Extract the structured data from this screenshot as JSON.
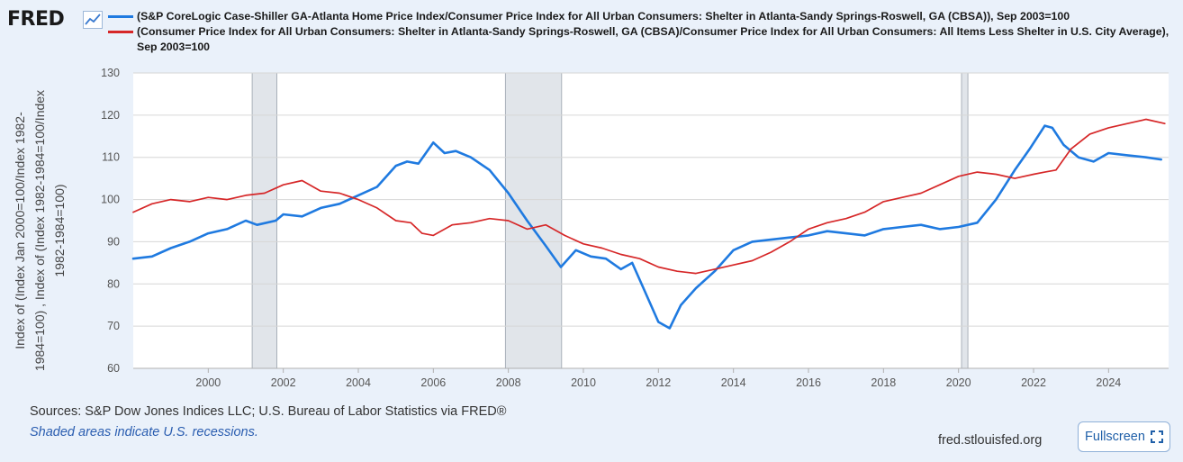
{
  "header": {
    "logo_text": "FRED",
    "logo_icon": "trend-line-icon"
  },
  "chart_data": {
    "type": "line",
    "title": "",
    "ylabel": "Index of (Index Jan 2000=100/Index 1982-1984=100) , Index of (Index 1982-1984=100/Index 1982-1984=100)",
    "xlabel": "",
    "ylim": [
      60,
      130
    ],
    "xlim": [
      1998.0,
      2025.6
    ],
    "yticks": [
      60,
      70,
      80,
      90,
      100,
      110,
      120,
      130
    ],
    "xticks": [
      2000,
      2002,
      2004,
      2006,
      2008,
      2010,
      2012,
      2014,
      2016,
      2018,
      2020,
      2022,
      2024
    ],
    "recessions": [
      [
        2001.17,
        2001.83
      ],
      [
        2007.92,
        2009.42
      ],
      [
        2020.08,
        2020.25
      ]
    ],
    "series": [
      {
        "name": "(S&P CoreLogic Case-Shiller GA-Atlanta Home Price Index/Consumer Price Index for All Urban Consumers: Shelter in Atlanta-Sandy Springs-Roswell, GA (CBSA)), Sep 2003=100",
        "color": "#1f7ae0",
        "x": [
          1998.0,
          1998.5,
          1999.0,
          1999.5,
          2000.0,
          2000.5,
          2001.0,
          2001.3,
          2001.8,
          2002.0,
          2002.5,
          2003.0,
          2003.5,
          2004.0,
          2004.5,
          2005.0,
          2005.3,
          2005.6,
          2006.0,
          2006.3,
          2006.6,
          2007.0,
          2007.5,
          2008.0,
          2008.5,
          2009.0,
          2009.4,
          2009.8,
          2010.2,
          2010.6,
          2011.0,
          2011.3,
          2011.6,
          2012.0,
          2012.3,
          2012.6,
          2013.0,
          2013.5,
          2014.0,
          2014.5,
          2015.0,
          2015.5,
          2016.0,
          2016.5,
          2017.0,
          2017.5,
          2018.0,
          2018.5,
          2019.0,
          2019.5,
          2020.0,
          2020.5,
          2021.0,
          2021.5,
          2021.9,
          2022.3,
          2022.5,
          2022.8,
          2023.2,
          2023.6,
          2024.0,
          2024.5,
          2025.0,
          2025.4
        ],
        "values": [
          86,
          86.5,
          88.5,
          90,
          92,
          93,
          95,
          94,
          95,
          96.5,
          96,
          98,
          99,
          101,
          103,
          108,
          109,
          108.5,
          113.5,
          111,
          111.5,
          110,
          107,
          101.5,
          95,
          89,
          84,
          88,
          86.5,
          86,
          83.5,
          85,
          79,
          71,
          69.5,
          75,
          79,
          83,
          88,
          90,
          90.5,
          91,
          91.5,
          92.5,
          92,
          91.5,
          93,
          93.5,
          94,
          93,
          93.5,
          94.5,
          100,
          107,
          112,
          117.5,
          117,
          113,
          110,
          109,
          111,
          110.5,
          110,
          109.5
        ]
      },
      {
        "name": "(Consumer Price Index for All Urban Consumers: Shelter in Atlanta-Sandy Springs-Roswell, GA (CBSA)/Consumer Price Index for All Urban Consumers: All Items Less Shelter in U.S. City Average), Sep 2003=100",
        "color": "#d62728",
        "x": [
          1998.0,
          1998.5,
          1999.0,
          1999.5,
          2000.0,
          2000.5,
          2001.0,
          2001.5,
          2002.0,
          2002.5,
          2003.0,
          2003.5,
          2004.0,
          2004.5,
          2005.0,
          2005.4,
          2005.7,
          2006.0,
          2006.5,
          2007.0,
          2007.5,
          2008.0,
          2008.5,
          2009.0,
          2009.5,
          2010.0,
          2010.5,
          2011.0,
          2011.5,
          2012.0,
          2012.5,
          2013.0,
          2013.5,
          2014.0,
          2014.5,
          2015.0,
          2015.5,
          2016.0,
          2016.5,
          2017.0,
          2017.5,
          2018.0,
          2018.5,
          2019.0,
          2019.5,
          2020.0,
          2020.5,
          2021.0,
          2021.5,
          2022.0,
          2022.3,
          2022.6,
          2023.0,
          2023.5,
          2024.0,
          2024.5,
          2025.0,
          2025.5
        ],
        "values": [
          97,
          99,
          100,
          99.5,
          100.5,
          100,
          101,
          101.5,
          103.5,
          104.5,
          102,
          101.5,
          100,
          98,
          95,
          94.5,
          92,
          91.5,
          94,
          94.5,
          95.5,
          95,
          93,
          94,
          91.5,
          89.5,
          88.5,
          87,
          86,
          84,
          83,
          82.5,
          83.5,
          84.5,
          85.5,
          87.5,
          90,
          93,
          94.5,
          95.5,
          97,
          99.5,
          100.5,
          101.5,
          103.5,
          105.5,
          106.5,
          106,
          105,
          106,
          106.5,
          107,
          112,
          115.5,
          117,
          118,
          119,
          118
        ]
      }
    ]
  },
  "sources": "Sources: S&P Dow Jones Indices LLC; U.S. Bureau of Labor Statistics via FRED®",
  "note": "Shaded areas indicate U.S. recessions.",
  "site": "fred.stlouisfed.org",
  "fullscreen_label": "Fullscreen"
}
